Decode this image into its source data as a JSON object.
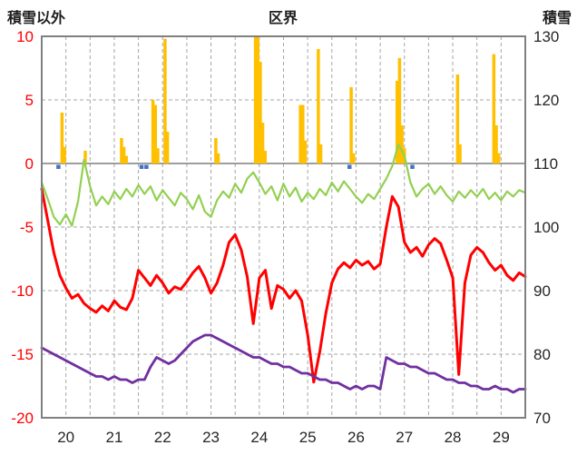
{
  "titles": {
    "left": "積雪以外",
    "center": "区界",
    "right": "積雪"
  },
  "chart_data": {
    "type": "combo",
    "title": "区界",
    "x_axis": {
      "tick_labels": [
        "20",
        "21",
        "22",
        "23",
        "24",
        "25",
        "26",
        "27",
        "28",
        "29"
      ],
      "days": 10,
      "grid_interval_days": 0.5
    },
    "left_axis": {
      "title": "積雪以外",
      "ticks": [
        10,
        5,
        0,
        -5,
        -10,
        -15,
        -20
      ],
      "range": [
        -20,
        10
      ],
      "tick_color": "#FF0000"
    },
    "right_axis": {
      "title": "積雪",
      "ticks": [
        130,
        120,
        110,
        100,
        90,
        80,
        70
      ],
      "range": [
        70,
        130
      ],
      "tick_color": "#262626"
    },
    "grid": {
      "color": "#A6A6A6",
      "style": "dashed",
      "zero_line_color": "#7F7F7F",
      "frame_color": "#808080"
    },
    "series": [
      {
        "name": "precipitation",
        "type": "bar",
        "axis": "left",
        "color": "#FFC000",
        "points": [
          [
            0.42,
            4.0
          ],
          [
            0.47,
            1.3
          ],
          [
            0.9,
            1.0
          ],
          [
            1.65,
            2.0
          ],
          [
            1.7,
            1.3
          ],
          [
            1.75,
            0.6
          ],
          [
            2.3,
            5.0
          ],
          [
            2.35,
            4.6
          ],
          [
            2.4,
            1.2
          ],
          [
            2.55,
            9.8
          ],
          [
            2.6,
            2.5
          ],
          [
            3.6,
            2.0
          ],
          [
            3.65,
            0.8
          ],
          [
            4.42,
            10.0
          ],
          [
            4.47,
            10.0
          ],
          [
            4.52,
            8.0
          ],
          [
            4.57,
            3.2
          ],
          [
            4.62,
            1.0
          ],
          [
            5.35,
            4.6
          ],
          [
            5.4,
            4.6
          ],
          [
            5.45,
            1.8
          ],
          [
            5.72,
            9.0
          ],
          [
            5.77,
            1.5
          ],
          [
            6.4,
            6.0
          ],
          [
            6.45,
            0.8
          ],
          [
            7.35,
            6.5
          ],
          [
            7.4,
            8.3
          ],
          [
            7.45,
            3.0
          ],
          [
            7.5,
            1.2
          ],
          [
            8.6,
            7.0
          ],
          [
            8.65,
            1.5
          ],
          [
            9.35,
            8.6
          ],
          [
            9.4,
            3.0
          ],
          [
            9.45,
            0.8
          ]
        ]
      },
      {
        "name": "snow-flag",
        "type": "marker",
        "axis": "left",
        "color": "#4472C4",
        "t": [
          0.34,
          2.06,
          2.16,
          6.36,
          7.66
        ]
      },
      {
        "name": "temperature-green",
        "type": "line",
        "axis": "left",
        "color": "#92D050",
        "width": 2.2,
        "t0": 0,
        "t_step": 0.125,
        "values": [
          -1.5,
          -2.8,
          -4.2,
          -4.8,
          -4.0,
          -4.9,
          -3.0,
          0.3,
          -1.8,
          -3.3,
          -2.6,
          -3.2,
          -2.2,
          -2.8,
          -2.0,
          -2.6,
          -1.7,
          -2.4,
          -1.8,
          -2.9,
          -2.1,
          -2.7,
          -3.3,
          -2.3,
          -2.8,
          -3.6,
          -2.5,
          -3.8,
          -4.2,
          -2.9,
          -2.2,
          -2.7,
          -1.6,
          -2.3,
          -1.2,
          -0.7,
          -1.5,
          -2.4,
          -1.8,
          -2.9,
          -1.6,
          -2.6,
          -1.9,
          -3.0,
          -2.3,
          -2.8,
          -2.0,
          -2.5,
          -1.5,
          -2.2,
          -1.4,
          -2.0,
          -2.6,
          -3.1,
          -2.4,
          -2.8,
          -2.0,
          -1.2,
          -0.2,
          1.5,
          0.6,
          -1.5,
          -2.6,
          -2.0,
          -1.6,
          -2.4,
          -1.8,
          -2.5,
          -3.0,
          -2.2,
          -2.7,
          -2.1,
          -2.6,
          -2.0,
          -2.8,
          -2.3,
          -2.9,
          -2.2,
          -2.6,
          -2.1,
          -2.3
        ]
      },
      {
        "name": "temperature-red",
        "type": "line",
        "axis": "left",
        "color": "#FF0000",
        "width": 3,
        "t0": 0,
        "t_step": 0.125,
        "values": [
          -2.0,
          -4.5,
          -7.0,
          -8.8,
          -9.8,
          -10.6,
          -10.3,
          -11.0,
          -11.4,
          -11.7,
          -11.2,
          -11.6,
          -10.8,
          -11.3,
          -11.5,
          -10.6,
          -8.4,
          -9.0,
          -9.6,
          -8.8,
          -9.4,
          -10.2,
          -9.7,
          -9.9,
          -9.3,
          -8.6,
          -8.1,
          -9.0,
          -10.2,
          -9.4,
          -8.0,
          -6.2,
          -5.6,
          -6.8,
          -8.9,
          -12.6,
          -9.0,
          -8.4,
          -11.4,
          -9.6,
          -9.9,
          -10.6,
          -10.0,
          -10.8,
          -13.5,
          -17.2,
          -14.8,
          -11.8,
          -9.4,
          -8.3,
          -7.8,
          -8.2,
          -7.6,
          -8.0,
          -7.7,
          -8.3,
          -7.9,
          -5.0,
          -2.6,
          -3.4,
          -6.2,
          -7.0,
          -6.6,
          -7.3,
          -6.4,
          -5.9,
          -6.3,
          -7.6,
          -9.0,
          -16.6,
          -9.4,
          -7.2,
          -6.6,
          -7.0,
          -7.8,
          -8.4,
          -8.0,
          -8.8,
          -9.2,
          -8.6,
          -8.9
        ]
      },
      {
        "name": "snow-depth-purple",
        "type": "line",
        "axis": "right",
        "color": "#7030A0",
        "width": 2.8,
        "t0": 0,
        "t_step": 0.125,
        "values": [
          81,
          80.5,
          80,
          79.5,
          79,
          78.5,
          78,
          77.5,
          77,
          76.5,
          76.5,
          76,
          76.5,
          76,
          76,
          75.5,
          76,
          76,
          78,
          79.5,
          79,
          78.5,
          79,
          80,
          81,
          82,
          82.5,
          83,
          83,
          82.5,
          82,
          81.5,
          81,
          80.5,
          80,
          79.5,
          79.5,
          79,
          78.5,
          78.5,
          78,
          78,
          77.5,
          77,
          77,
          76.5,
          76,
          76,
          75.5,
          75.5,
          75,
          74.5,
          75,
          74.5,
          75,
          75,
          74.5,
          79.5,
          79,
          78.5,
          78.5,
          78,
          78,
          77.5,
          77,
          77,
          76.5,
          76,
          76,
          75.5,
          75.5,
          75,
          75,
          74.5,
          74.5,
          75,
          74.5,
          74.5,
          74,
          74.5,
          74.5
        ]
      }
    ]
  }
}
